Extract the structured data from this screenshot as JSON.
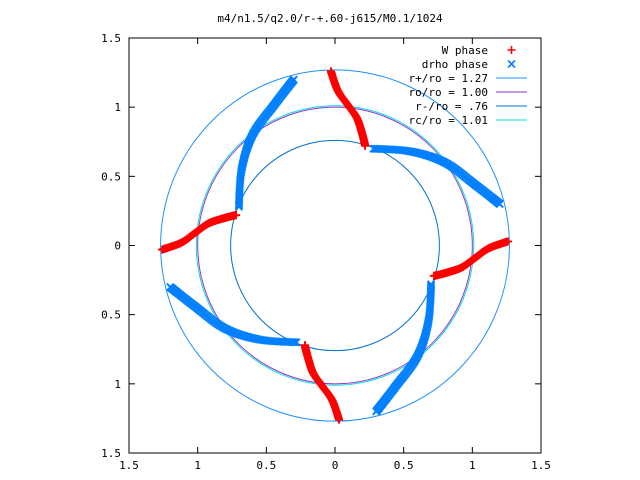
{
  "chart_data": {
    "type": "scatter",
    "title": "m4/n1.5/q2.0/r-+.60-j615/M0.1/1024",
    "xlabel": "",
    "ylabel": "",
    "xlim": [
      -1.5,
      1.5
    ],
    "ylim": [
      -1.5,
      1.5
    ],
    "x_tick_values": [
      -1.5,
      -1,
      -0.5,
      0,
      0.5,
      1,
      1.5
    ],
    "x_tick_labels": [
      "1.5",
      "1",
      "0.5",
      "0",
      "0.5",
      "1",
      "1.5"
    ],
    "y_tick_values": [
      1.5,
      1,
      0.5,
      0,
      -0.5,
      -1,
      -1.5
    ],
    "y_tick_labels": [
      "1.5",
      "1",
      "0.5",
      "0",
      "0.5",
      "1",
      "1.5"
    ],
    "grid": false,
    "legend_position": "top-right",
    "legend": [
      {
        "label": "W phase",
        "marker": "+",
        "color": "#ff0000"
      },
      {
        "label": "drho phase",
        "marker": "x",
        "color": "#0080ff"
      },
      {
        "label": "r+/ro = 1.27",
        "marker": "line",
        "color": "#1e90ff"
      },
      {
        "label": "ro/ro = 1.00",
        "marker": "line",
        "color": "#9932cc"
      },
      {
        "label": "r-/ro = .76",
        "marker": "line",
        "color": "#0070d0"
      },
      {
        "label": "rc/ro = 1.01",
        "marker": "line",
        "color": "#00e0e0"
      }
    ],
    "circles": [
      {
        "name": "r+/ro = 1.27",
        "r": 1.27,
        "color": "#1e90ff"
      },
      {
        "name": "ro/ro = 1.00",
        "r": 1.0,
        "color": "#9932cc"
      },
      {
        "name": "r-/ro = .76",
        "r": 0.76,
        "color": "#0070d0"
      },
      {
        "name": "rc/ro = 1.01",
        "r": 1.01,
        "color": "#00e0e0"
      }
    ],
    "series": [
      {
        "name": "W phase",
        "color": "#ff0000",
        "marker": "+",
        "arms": [
          [
            [
              -0.03,
              1.26
            ],
            [
              0.02,
              1.12
            ],
            [
              0.09,
              1.02
            ],
            [
              0.16,
              0.92
            ],
            [
              0.2,
              0.8
            ],
            [
              0.22,
              0.72
            ]
          ],
          [
            [
              1.26,
              0.03
            ],
            [
              1.12,
              -0.02
            ],
            [
              1.02,
              -0.09
            ],
            [
              0.92,
              -0.16
            ],
            [
              0.8,
              -0.2
            ],
            [
              0.72,
              -0.22
            ]
          ],
          [
            [
              0.03,
              -1.26
            ],
            [
              -0.02,
              -1.12
            ],
            [
              -0.09,
              -1.02
            ],
            [
              -0.16,
              -0.92
            ],
            [
              -0.2,
              -0.8
            ],
            [
              -0.22,
              -0.72
            ]
          ],
          [
            [
              -1.26,
              -0.03
            ],
            [
              -1.12,
              0.02
            ],
            [
              -1.02,
              0.09
            ],
            [
              -0.92,
              0.16
            ],
            [
              -0.8,
              0.2
            ],
            [
              -0.72,
              0.22
            ]
          ]
        ]
      },
      {
        "name": "drho phase",
        "color": "#0080ff",
        "marker": "x",
        "arms": [
          [
            [
              0.28,
              0.7
            ],
            [
              0.55,
              0.68
            ],
            [
              0.8,
              0.6
            ],
            [
              1.02,
              0.44
            ],
            [
              1.2,
              0.3
            ]
          ],
          [
            [
              0.7,
              -0.28
            ],
            [
              0.68,
              -0.55
            ],
            [
              0.6,
              -0.8
            ],
            [
              0.44,
              -1.02
            ],
            [
              0.3,
              -1.2
            ]
          ],
          [
            [
              -0.28,
              -0.7
            ],
            [
              -0.55,
              -0.68
            ],
            [
              -0.8,
              -0.6
            ],
            [
              -1.02,
              -0.44
            ],
            [
              -1.2,
              -0.3
            ]
          ],
          [
            [
              -0.7,
              0.28
            ],
            [
              -0.68,
              0.55
            ],
            [
              -0.6,
              0.8
            ],
            [
              -0.44,
              1.02
            ],
            [
              -0.3,
              1.2
            ]
          ]
        ]
      }
    ]
  }
}
